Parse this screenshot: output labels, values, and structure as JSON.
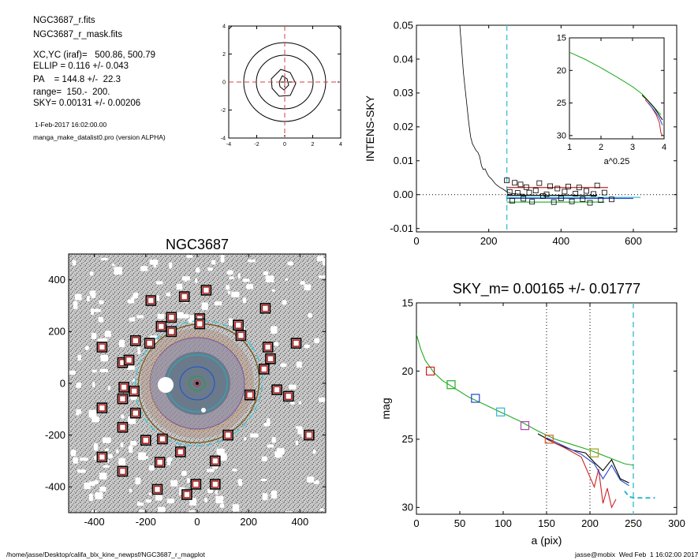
{
  "info": {
    "file": "NGC3687_r.fits",
    "mask": "NGC3687_r_mask.fits",
    "xcyc": "XC,YC (iraf)=   500.86, 500.79",
    "ellip": "ELLIP = 0.116 +/- 0.043",
    "pa": "PA    = 144.8 +/-  22.3",
    "range": "range=  150.-  200.",
    "sky": "SKY= 0.00131 +/- 0.00206",
    "date": "1-Feb-2017 16:02:00.00",
    "program": "manga_make_datalist0.pro (version ALPHA)"
  },
  "footer": {
    "path": "/home/jasse/Desktop/califa_blx_kine_newpsf/NGC3687_r_magplot",
    "stamp": "jasse@mobix  Wed Feb  1 16:02:00 2017"
  },
  "chart_data": [
    {
      "id": "contour",
      "type": "contour",
      "title": "",
      "xlim": [
        -4,
        4
      ],
      "ylim": [
        -4,
        4
      ],
      "xticks": [
        "-4",
        "-2",
        "0",
        "2",
        "4"
      ],
      "yticks": [
        "4",
        "2",
        "0",
        "-2",
        "-4"
      ],
      "crosshair_color": "#d04040"
    },
    {
      "id": "intens",
      "type": "line",
      "title": "SKY= 0.00131 +/- 0.00206",
      "xlabel": "",
      "ylabel": "INTENS-SKY",
      "xlim": [
        0,
        720
      ],
      "ylim": [
        -0.011,
        0.05
      ],
      "xticks": [
        "0",
        "200",
        "400",
        "600"
      ],
      "yticks": [
        "0.05",
        "0.04",
        "0.03",
        "0.02",
        "0.01",
        "0.00",
        "-0.01"
      ],
      "sky_line_x": 250,
      "profile": {
        "x": [
          120,
          125,
          130,
          135,
          140,
          145,
          150,
          155,
          160,
          165,
          170,
          175,
          180,
          185,
          190,
          195,
          200,
          205,
          210,
          215,
          220,
          225,
          230,
          240,
          250,
          260,
          280,
          300
        ],
        "y": [
          0.05,
          0.043,
          0.036,
          0.031,
          0.026,
          0.021,
          0.017,
          0.015,
          0.014,
          0.013,
          0.0125,
          0.0112,
          0.0085,
          0.0074,
          0.0076,
          0.0064,
          0.0054,
          0.0049,
          0.0043,
          0.0036,
          0.003,
          0.0026,
          0.0022,
          0.0016,
          0.0008,
          0.0004,
          0.0002,
          0.0001
        ]
      },
      "points": {
        "x": [
          250,
          258,
          265,
          272,
          280,
          288,
          296,
          304,
          312,
          320,
          330,
          340,
          350,
          360,
          370,
          380,
          390,
          400,
          410,
          420,
          430,
          440,
          450,
          460,
          470,
          480,
          490,
          500,
          510,
          520,
          540
        ],
        "y": [
          0.0042,
          0.0008,
          -0.0018,
          0.0035,
          0.0005,
          0.003,
          -0.0012,
          0.0022,
          0.0006,
          -0.0021,
          0.0012,
          0.0034,
          -0.0004,
          0.0001,
          0.0025,
          -0.0022,
          0.0018,
          -0.0011,
          0.0009,
          0.0024,
          -0.002,
          0.0003,
          0.0021,
          -0.0013,
          0.0011,
          -0.0024,
          0.0002,
          0.0027,
          -0.0016,
          0.0006,
          -0.0014
        ]
      },
      "series": [
        {
          "name": "",
          "color": "#000000",
          "x": [
            250,
            500
          ],
          "y": [
            -0.0002,
            -0.0002
          ]
        },
        {
          "name": "",
          "color": "#cc2222",
          "x": [
            250,
            530
          ],
          "y": [
            0.0021,
            0.0021
          ]
        },
        {
          "name": "",
          "color": "#22aa22",
          "x": [
            250,
            520
          ],
          "y": [
            -0.0022,
            -0.0022
          ]
        },
        {
          "name": "",
          "color": "#2244cc",
          "x": [
            250,
            600
          ],
          "y": [
            -0.0011,
            -0.0011
          ]
        },
        {
          "name": "",
          "color": "#33b5cc",
          "x": [
            250,
            620
          ],
          "y": [
            -0.0008,
            -0.0008
          ]
        }
      ]
    },
    {
      "id": "inset",
      "type": "line",
      "xlabel": "a^0.25",
      "xlim": [
        1,
        4
      ],
      "ylim": [
        15,
        30.5
      ],
      "xticks": [
        "1",
        "2",
        "3",
        "4"
      ],
      "yticks": [
        "15",
        "20",
        "25",
        "30"
      ],
      "series": [
        {
          "name": "",
          "color": "#22aa22",
          "x": [
            1.0,
            1.5,
            2.0,
            2.5,
            3.0,
            3.3,
            3.6,
            3.8,
            3.9
          ],
          "y": [
            17.2,
            18.3,
            19.6,
            21.0,
            22.5,
            23.6,
            25.2,
            26.3,
            26.8
          ]
        },
        {
          "name": "",
          "color": "#000000",
          "x": [
            3.3,
            3.5,
            3.7,
            3.85,
            3.95
          ],
          "y": [
            23.8,
            24.7,
            25.8,
            26.9,
            27.6
          ]
        },
        {
          "name": "",
          "color": "#cc2222",
          "x": [
            3.4,
            3.6,
            3.75,
            3.85,
            3.9,
            3.95
          ],
          "y": [
            24.5,
            25.6,
            26.8,
            28.0,
            29.6,
            30.0
          ]
        },
        {
          "name": "",
          "color": "#2244cc",
          "x": [
            3.5,
            3.7,
            3.85,
            3.95
          ],
          "y": [
            25.0,
            26.2,
            27.3,
            28.4
          ]
        }
      ]
    },
    {
      "id": "image",
      "type": "image",
      "title": "NGC3687",
      "xlim": [
        -500,
        500
      ],
      "ylim": [
        -500,
        500
      ],
      "xticks": [
        "-400",
        "-200",
        "0",
        "200",
        "400"
      ],
      "yticks": [
        "400",
        "200",
        "0",
        "-200",
        "-400"
      ],
      "ellipse_semi_major": 250,
      "ellipse_ellip": 0.116,
      "ellipse_pa": 144.8,
      "stars": [
        {
          "x": -180,
          "y": 320
        },
        {
          "x": -50,
          "y": 335
        },
        {
          "x": 35,
          "y": 360
        },
        {
          "x": 265,
          "y": 290
        },
        {
          "x": -100,
          "y": 255
        },
        {
          "x": 10,
          "y": 250
        },
        {
          "x": 10,
          "y": 230
        },
        {
          "x": -140,
          "y": 220
        },
        {
          "x": -100,
          "y": 200
        },
        {
          "x": -370,
          "y": 140
        },
        {
          "x": -240,
          "y": 165
        },
        {
          "x": -185,
          "y": 155
        },
        {
          "x": 160,
          "y": 225
        },
        {
          "x": 170,
          "y": 185
        },
        {
          "x": 275,
          "y": 140
        },
        {
          "x": 385,
          "y": 155
        },
        {
          "x": -290,
          "y": 80
        },
        {
          "x": -265,
          "y": 90
        },
        {
          "x": 285,
          "y": 95
        },
        {
          "x": 260,
          "y": 55
        },
        {
          "x": -285,
          "y": -15
        },
        {
          "x": -245,
          "y": -30
        },
        {
          "x": -290,
          "y": -60
        },
        {
          "x": 310,
          "y": -25
        },
        {
          "x": 355,
          "y": -50
        },
        {
          "x": 205,
          "y": -45
        },
        {
          "x": -370,
          "y": -95
        },
        {
          "x": -240,
          "y": -115
        },
        {
          "x": -290,
          "y": -170
        },
        {
          "x": 120,
          "y": -200
        },
        {
          "x": -200,
          "y": -220
        },
        {
          "x": -135,
          "y": -215
        },
        {
          "x": -65,
          "y": -265
        },
        {
          "x": 435,
          "y": -200
        },
        {
          "x": -370,
          "y": -285
        },
        {
          "x": -145,
          "y": -305
        },
        {
          "x": 70,
          "y": -300
        },
        {
          "x": -290,
          "y": -340
        },
        {
          "x": -155,
          "y": -410
        },
        {
          "x": -40,
          "y": -430
        },
        {
          "x": -5,
          "y": -390
        },
        {
          "x": 70,
          "y": -390
        }
      ]
    },
    {
      "id": "mag",
      "type": "line",
      "title": "SKY_m=  0.00165 +/- 0.01777",
      "xlabel": "a (pix)",
      "ylabel": "mag",
      "xlim": [
        0,
        300
      ],
      "ylim": [
        15,
        30.5
      ],
      "xticks": [
        "0",
        "50",
        "100",
        "150",
        "200",
        "250",
        "300"
      ],
      "yticks": [
        "15",
        "20",
        "25",
        "30"
      ],
      "vlines": [
        150,
        200
      ],
      "sky_line_x": 250,
      "squares": [
        {
          "x": 16,
          "y": 20.0,
          "color": "#cc2222"
        },
        {
          "x": 40,
          "y": 21.0,
          "color": "#22aa22"
        },
        {
          "x": 68,
          "y": 22.0,
          "color": "#2244cc"
        },
        {
          "x": 97,
          "y": 23.0,
          "color": "#33b5cc"
        },
        {
          "x": 125,
          "y": 24.0,
          "color": "#b040b0"
        },
        {
          "x": 153,
          "y": 25.0,
          "color": "#d06020"
        },
        {
          "x": 205,
          "y": 26.0,
          "color": "#a0a020"
        }
      ],
      "series": [
        {
          "name": "",
          "color": "#22aa22",
          "x": [
            0,
            5,
            10,
            20,
            30,
            40,
            50,
            60,
            80,
            100,
            120,
            140,
            160,
            180,
            200,
            220,
            240,
            250
          ],
          "y": [
            17.3,
            18.4,
            19.2,
            20.1,
            20.7,
            21.1,
            21.5,
            21.9,
            22.5,
            23.1,
            23.7,
            24.4,
            25.0,
            25.4,
            25.8,
            26.3,
            26.8,
            26.9
          ]
        },
        {
          "name": "",
          "color": "#000000",
          "x": [
            140,
            160,
            180,
            195,
            205,
            215,
            225,
            235,
            245
          ],
          "y": [
            24.6,
            25.3,
            25.8,
            26.0,
            26.7,
            27.3,
            26.5,
            27.9,
            28.2
          ]
        },
        {
          "name": "",
          "color": "#cc2222",
          "x": [
            150,
            170,
            190,
            205,
            210,
            215,
            220,
            225,
            230
          ],
          "y": [
            25.0,
            25.6,
            26.3,
            28.5,
            27.2,
            29.7,
            28.6,
            30.0,
            29.4
          ]
        },
        {
          "name": "",
          "color": "#2244cc",
          "x": [
            150,
            170,
            190,
            205,
            215,
            225,
            235,
            245
          ],
          "y": [
            24.9,
            25.5,
            26.1,
            26.8,
            27.9,
            26.9,
            28.0,
            28.4
          ]
        },
        {
          "name": "",
          "color": "#33b5cc",
          "x": [
            240,
            245,
            250,
            258,
            265,
            275
          ],
          "y": [
            28.8,
            29.2,
            29.3,
            29.3,
            29.3,
            29.3
          ],
          "dash": true
        }
      ]
    }
  ]
}
